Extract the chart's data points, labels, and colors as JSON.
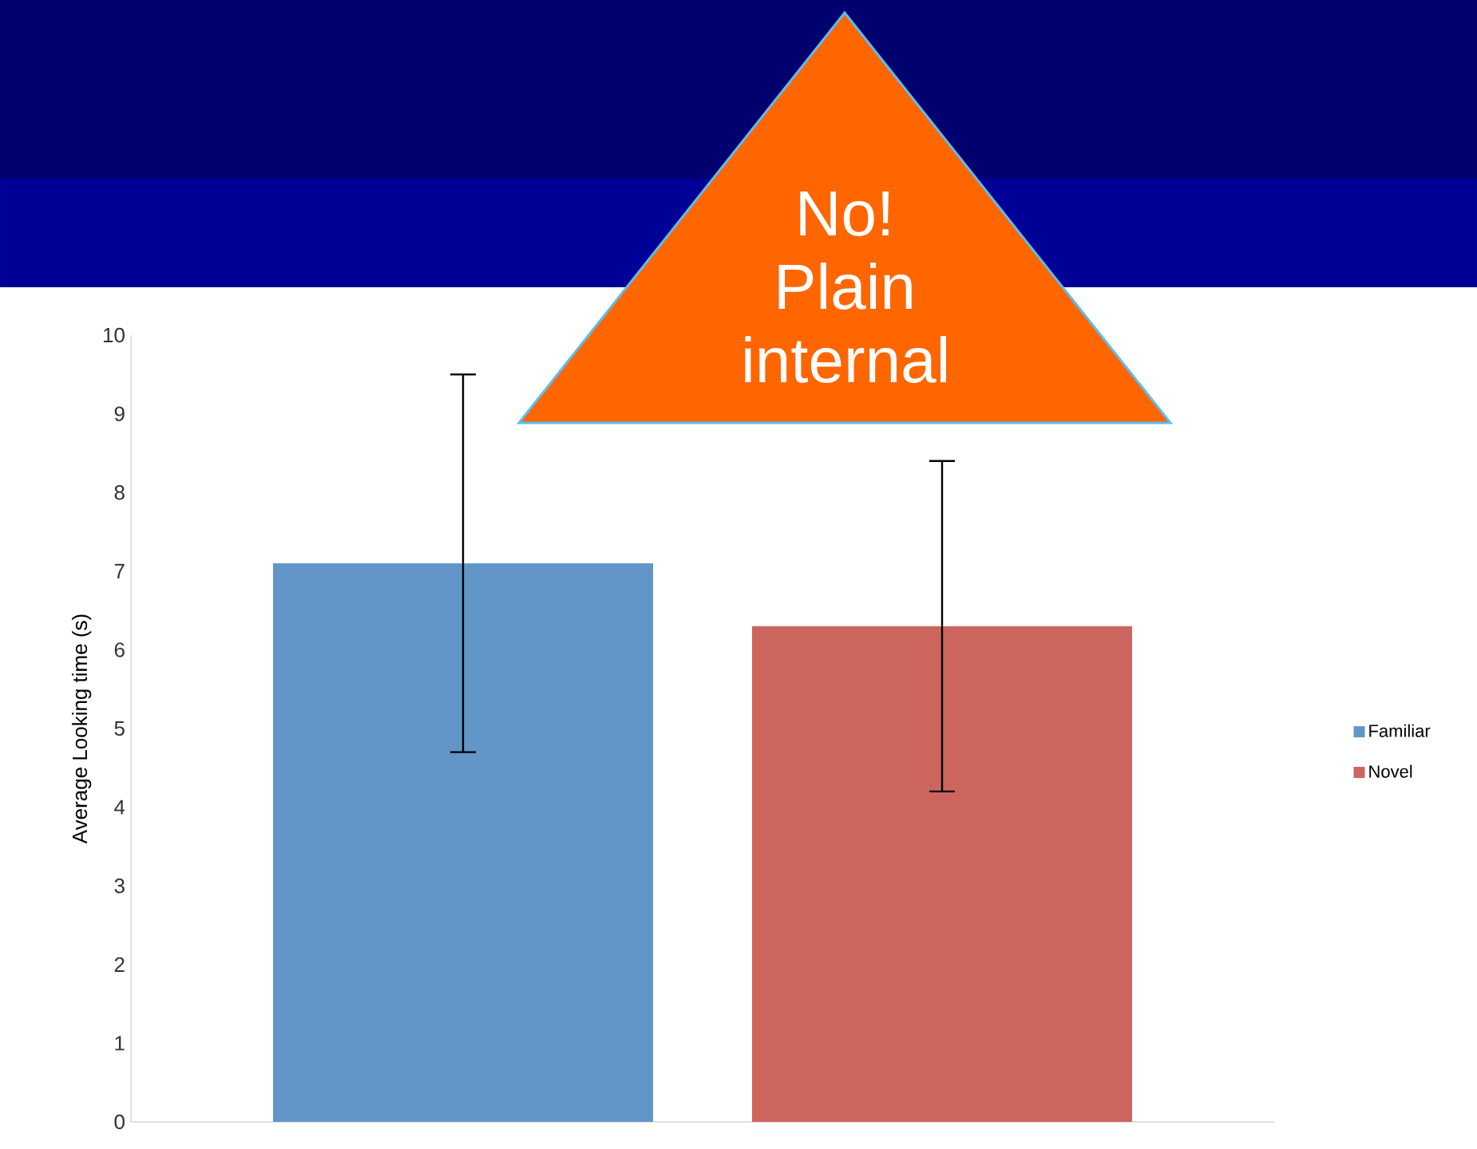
{
  "chart_data": {
    "type": "bar",
    "ylabel": "Average Looking time (s)",
    "annotations": [
      "No! Plain internal"
    ],
    "categories": [
      null
    ],
    "series": [
      {
        "name": "Familiar",
        "color": "#6296c8",
        "values": [
          7.1
        ],
        "errors": [
          2.4
        ]
      },
      {
        "name": "Novel",
        "color": "#cd655f",
        "values": [
          6.3
        ],
        "errors": [
          2.1
        ]
      }
    ],
    "ylim": [
      0,
      10
    ],
    "yticks": [
      0,
      1,
      2,
      3,
      4,
      5,
      6,
      7,
      8,
      9,
      10
    ],
    "legend": "right"
  }
}
